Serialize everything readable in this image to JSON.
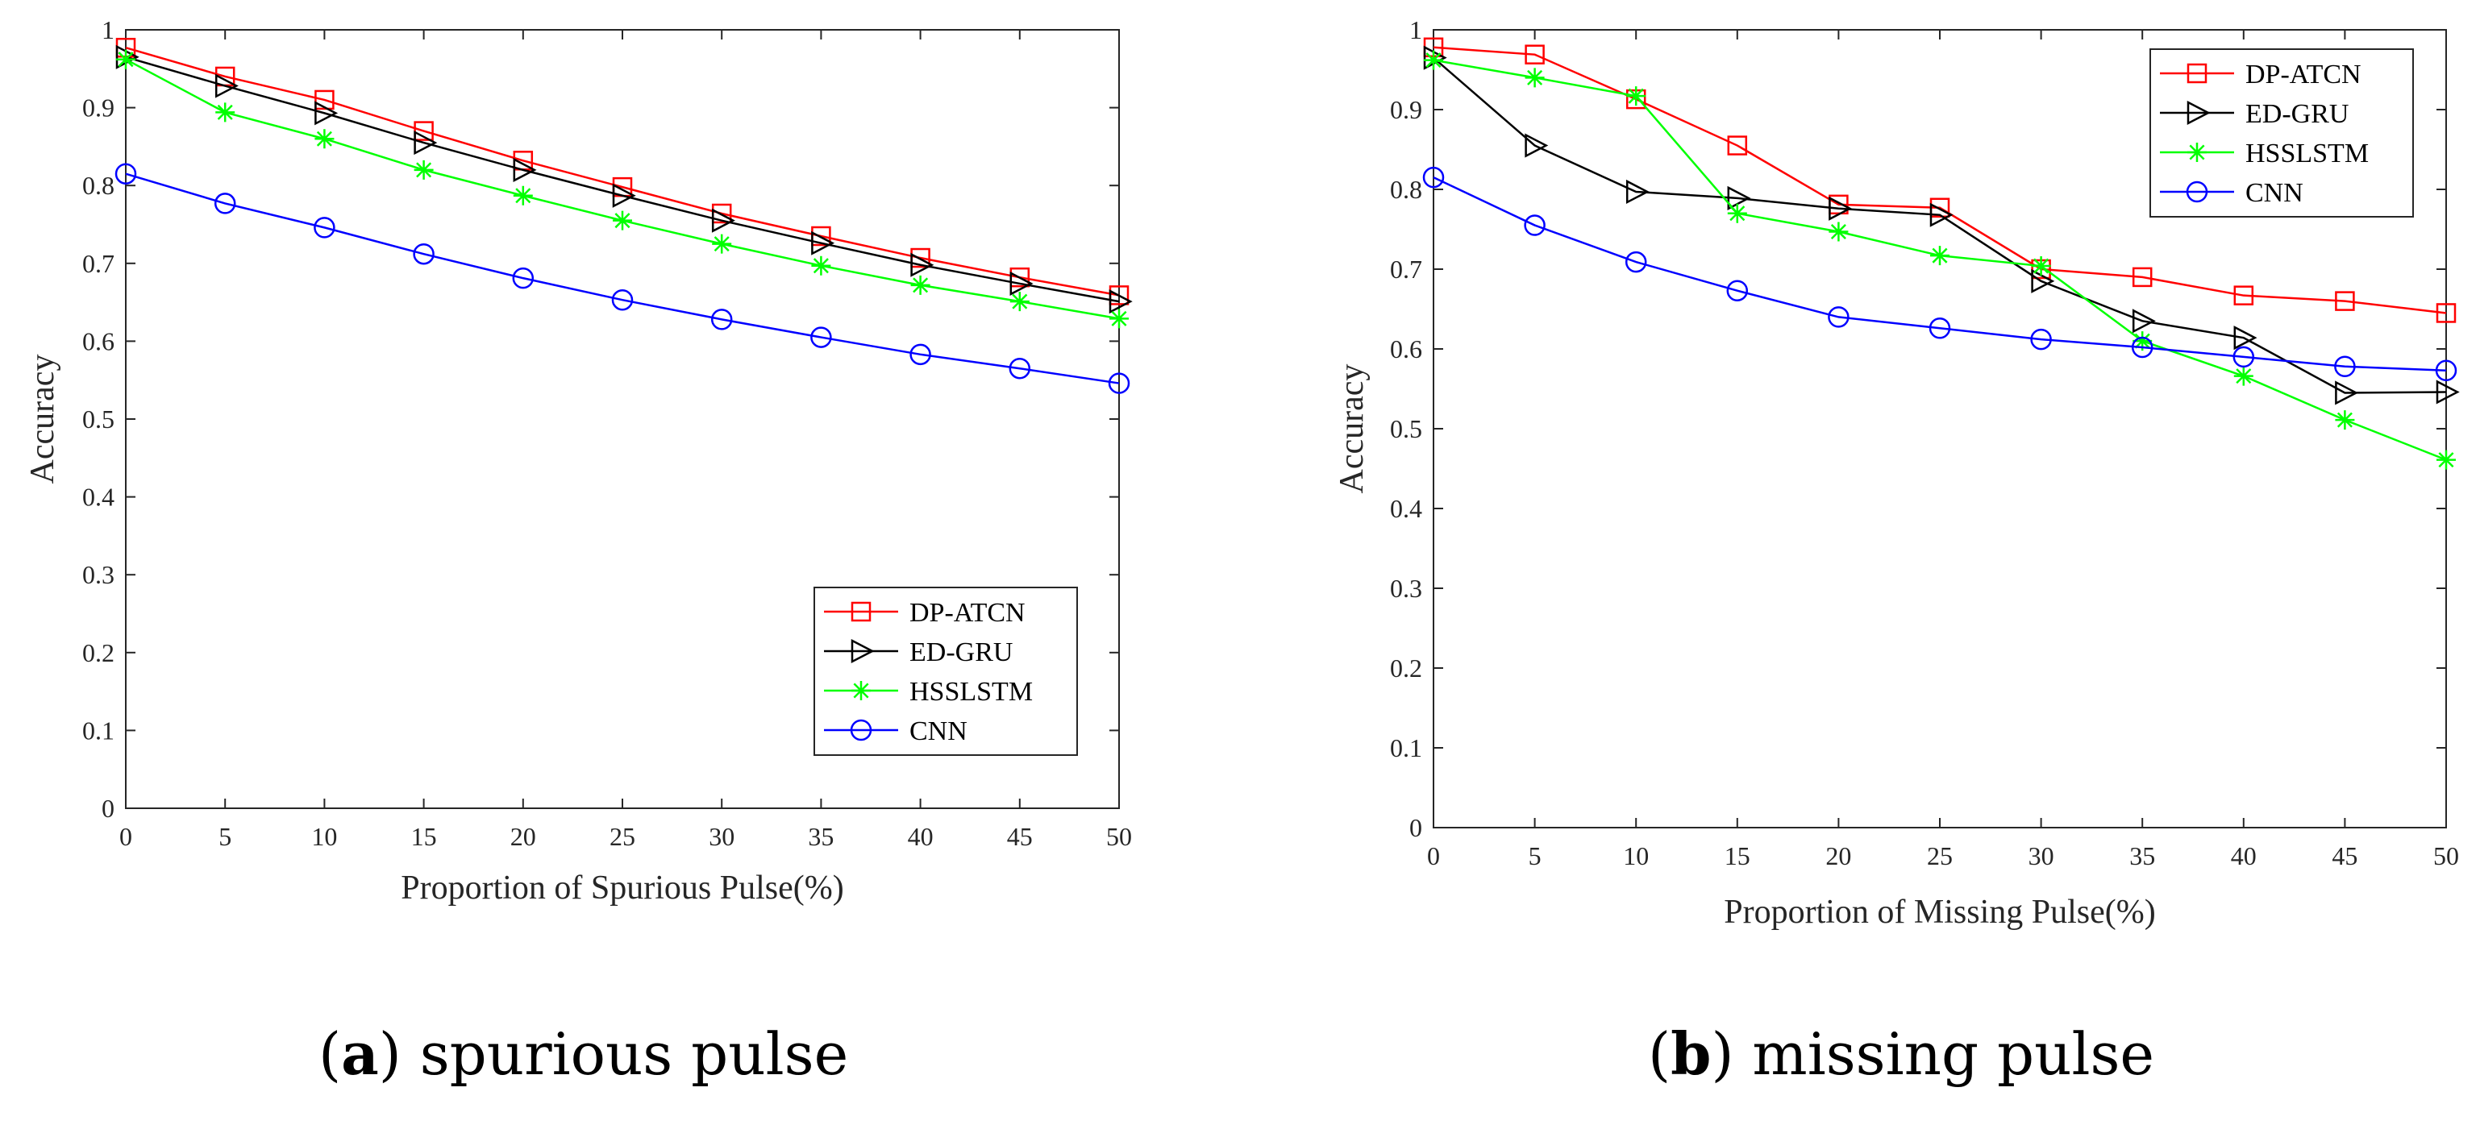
{
  "chart_data": [
    {
      "type": "line",
      "title": "",
      "xlabel": "Proportion of Spurious Pulse(%)",
      "ylabel": "Accuracy",
      "x": [
        0,
        5,
        10,
        15,
        20,
        25,
        30,
        35,
        40,
        45,
        50
      ],
      "xlim": [
        0,
        50
      ],
      "ylim": [
        0,
        1
      ],
      "xticks": [
        "0",
        "5",
        "10",
        "15",
        "20",
        "25",
        "30",
        "35",
        "40",
        "45",
        "50"
      ],
      "yticks": [
        "0",
        "0.1",
        "0.2",
        "0.3",
        "0.4",
        "0.5",
        "0.6",
        "0.7",
        "0.8",
        "0.9",
        "1"
      ],
      "legend_position": "bottom-right",
      "series": [
        {
          "name": "DP-ATCN",
          "color": "#ff0000",
          "marker": "square",
          "values": [
            0.977,
            0.94,
            0.91,
            0.87,
            0.832,
            0.798,
            0.764,
            0.735,
            0.707,
            0.682,
            0.659
          ]
        },
        {
          "name": "ED-GRU",
          "color": "#000000",
          "marker": "triangle-right",
          "values": [
            0.965,
            0.928,
            0.893,
            0.855,
            0.82,
            0.787,
            0.755,
            0.726,
            0.698,
            0.674,
            0.651
          ]
        },
        {
          "name": "HSSLSTM",
          "color": "#00ff00",
          "marker": "star",
          "values": [
            0.962,
            0.894,
            0.86,
            0.82,
            0.787,
            0.755,
            0.725,
            0.697,
            0.672,
            0.651,
            0.629
          ]
        },
        {
          "name": "CNN",
          "color": "#0000ff",
          "marker": "circle",
          "values": [
            0.815,
            0.777,
            0.746,
            0.712,
            0.681,
            0.653,
            0.628,
            0.605,
            0.583,
            0.565,
            0.546
          ]
        }
      ]
    },
    {
      "type": "line",
      "title": "",
      "xlabel": "Proportion of Missing Pulse(%)",
      "ylabel": "Accuracy",
      "x": [
        0,
        5,
        10,
        15,
        20,
        25,
        30,
        35,
        40,
        45,
        50
      ],
      "xlim": [
        0,
        50
      ],
      "ylim": [
        0,
        1
      ],
      "xticks": [
        "0",
        "5",
        "10",
        "15",
        "20",
        "25",
        "30",
        "35",
        "40",
        "45",
        "50"
      ],
      "yticks": [
        "0",
        "0.1",
        "0.2",
        "0.3",
        "0.4",
        "0.5",
        "0.6",
        "0.7",
        "0.8",
        "0.9",
        "1"
      ],
      "legend_position": "top-right",
      "series": [
        {
          "name": "DP-ATCN",
          "color": "#ff0000",
          "marker": "square",
          "values": [
            0.978,
            0.969,
            0.913,
            0.855,
            0.781,
            0.777,
            0.7,
            0.69,
            0.667,
            0.66,
            0.645
          ]
        },
        {
          "name": "ED-GRU",
          "color": "#000000",
          "marker": "triangle-right",
          "values": [
            0.965,
            0.855,
            0.797,
            0.789,
            0.776,
            0.768,
            0.685,
            0.635,
            0.614,
            0.545,
            0.546
          ]
        },
        {
          "name": "HSSLSTM",
          "color": "#00ff00",
          "marker": "star",
          "values": [
            0.962,
            0.94,
            0.917,
            0.77,
            0.747,
            0.717,
            0.704,
            0.61,
            0.566,
            0.511,
            0.461
          ]
        },
        {
          "name": "CNN",
          "color": "#0000ff",
          "marker": "circle",
          "values": [
            0.815,
            0.755,
            0.709,
            0.673,
            0.64,
            0.626,
            0.612,
            0.602,
            0.59,
            0.578,
            0.573
          ]
        }
      ]
    }
  ],
  "captions": [
    {
      "letter": "a",
      "text": "spurious pulse"
    },
    {
      "letter": "b",
      "text": "missing pulse"
    }
  ]
}
